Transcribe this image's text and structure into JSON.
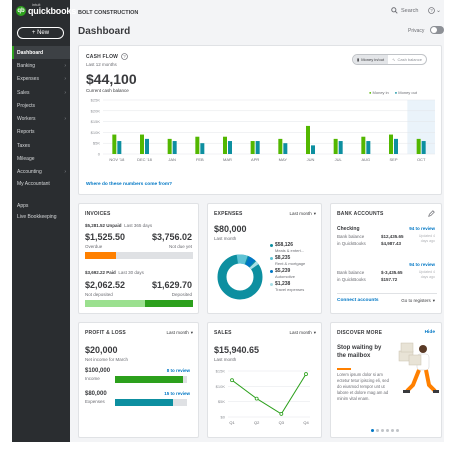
{
  "app": {
    "logo_intuit": "intuit",
    "logo": "quickbooks",
    "new_button": "New",
    "company": "BOLT CONSTRUCTION",
    "search": "Search",
    "title": "Dashboard",
    "privacy": "Privacy"
  },
  "sidebar": {
    "items": [
      {
        "label": "Dashboard",
        "arrow": false
      },
      {
        "label": "Banking",
        "arrow": true
      },
      {
        "label": "Expenses",
        "arrow": true
      },
      {
        "label": "Sales",
        "arrow": true
      },
      {
        "label": "Projects",
        "arrow": false
      },
      {
        "label": "Workers",
        "arrow": true
      },
      {
        "label": "Reports",
        "arrow": false
      },
      {
        "label": "Taxes",
        "arrow": false
      },
      {
        "label": "Mileage",
        "arrow": false
      },
      {
        "label": "Accounting",
        "arrow": true
      },
      {
        "label": "My Accountant",
        "arrow": false
      },
      {
        "label": "Apps",
        "arrow": false
      },
      {
        "label": "Live Bookkeeping",
        "arrow": false
      }
    ]
  },
  "cashflow": {
    "title": "CASH FLOW",
    "period": "Last 12 months",
    "amount": "$44,100",
    "subtitle": "Current cash balance",
    "toggle_active": "Money in/out",
    "toggle_inactive": "Cash balance",
    "legend_in": "Money in",
    "legend_out": "Money out",
    "link": "Where do these numbers come from?",
    "colors": {
      "in": "#53b700",
      "out": "#0d8fa0"
    }
  },
  "chart_data": {
    "type": "bar",
    "categories": [
      "NOV '18",
      "DEC '18",
      "JAN",
      "FEB",
      "MAR",
      "APR",
      "MAY",
      "JUN",
      "JUL",
      "AUG",
      "SEP",
      "OCT"
    ],
    "series": [
      {
        "name": "Money in",
        "values": [
          9,
          9,
          7,
          8,
          8,
          6,
          7,
          13,
          7,
          8,
          9,
          7
        ]
      },
      {
        "name": "Money out",
        "values": [
          6,
          7,
          6,
          5,
          6,
          6,
          5,
          4,
          6,
          6,
          7,
          6
        ]
      }
    ],
    "yticks": [
      "$25K",
      "$20K",
      "$15K",
      "$10K",
      "$5K",
      "0"
    ],
    "ylim": [
      0,
      25
    ],
    "unit": "$K"
  },
  "invoices": {
    "title": "INVOICES",
    "unpaid_amt": "$5,281.52",
    "unpaid_label": "Unpaid",
    "unpaid_period": "Last 365 days",
    "overdue_amt": "$1,525.50",
    "overdue_label": "Overdue",
    "notdue_amt": "$3,756.02",
    "notdue_label": "Not due yet",
    "overdue_fraction": 0.29,
    "paid_amt": "$3,692.22",
    "paid_label": "Paid",
    "paid_period": "Last 30 days",
    "notdep_amt": "$2,062.52",
    "notdep_label": "Not deposited",
    "dep_amt": "$1,629.70",
    "dep_label": "Deposited",
    "notdep_fraction": 0.56
  },
  "expenses": {
    "title": "EXPENSES",
    "period": "Last month",
    "amount": "$80,000",
    "sub": "Last month",
    "items": [
      {
        "amount": "$58,126",
        "label": "Meals & entert...",
        "color": "#0d8fa0"
      },
      {
        "amount": "$8,235",
        "label": "Rent & mortgage",
        "color": "#5fc3d5"
      },
      {
        "amount": "$5,239",
        "label": "Automotive",
        "color": "#0077c5"
      },
      {
        "amount": "$1,238",
        "label": "Travel expenses",
        "color": "#a9dfe7"
      }
    ]
  },
  "bank": {
    "title": "BANK ACCOUNTS",
    "checking": "Checking",
    "checking_review": "94 to review",
    "checking_bank_label": "Bank balance",
    "checking_bank": "$12,435.65",
    "checking_qb_label": "in QuickBooks",
    "checking_qb": "$4,987.43",
    "checking_updated": "Updated 4 days ago",
    "savings_review": "94 to review",
    "savings_bank_label": "Bank balance",
    "savings_bank": "$-3,435.65",
    "savings_qb_label": "in QuickBooks",
    "savings_qb": "$157.72",
    "savings_updated": "Updated 4 days ago",
    "connect": "Connect accounts",
    "registers": "Go to registers"
  },
  "pl": {
    "title": "PROFIT & LOSS",
    "period": "Last month",
    "net": "$20,000",
    "net_label": "Net income for March",
    "income_amt": "$100,000",
    "income_label": "Income",
    "income_review": "8 to review",
    "income_fraction": 0.95,
    "exp_amt": "$80,000",
    "exp_label": "Expenses",
    "exp_review": "15 to review",
    "exp_fraction": 0.8
  },
  "sales": {
    "title": "SALES",
    "period": "Last month",
    "amount": "$15,940.65",
    "sub": "Last month",
    "yticks": [
      "$15K",
      "$10K",
      "$5K",
      "$0"
    ],
    "xticks": [
      "Q1",
      "Q2",
      "Q3",
      "Q4"
    ],
    "values": [
      12,
      6,
      1,
      14
    ]
  },
  "discover": {
    "title": "DISCOVER MORE",
    "hide": "Hide",
    "headline": "Stop waiting by the mailbox",
    "body": "Lorem ipsum dolor si am ectetur tetur ipiscing eli, sed do eiusmod rempor unt ut labore et dolore mag am ad minim vital enam.",
    "dots": 6
  }
}
